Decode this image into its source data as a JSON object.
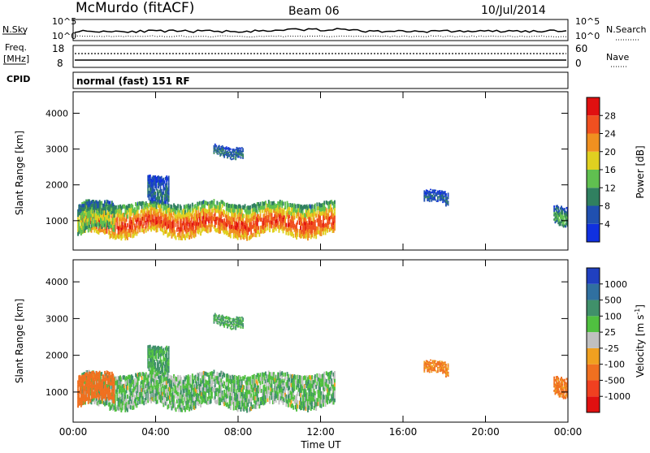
{
  "header": {
    "station": "McMurdo (fitACF)",
    "beam": "Beam 06",
    "date": "10/Jul/2014"
  },
  "noise_panel": {
    "left_label": "N.Sky",
    "right_label": "N.Search",
    "left_ticks": [
      "10^5",
      "10^0"
    ],
    "right_ticks": [
      "10^5",
      "10^0"
    ]
  },
  "freq_panel": {
    "left_label_1": "Freq.",
    "left_label_2": "[MHz]",
    "right_label": "Nave",
    "left_ticks": [
      "18",
      "8"
    ],
    "right_ticks": [
      "60",
      "0"
    ]
  },
  "cpid_panel": {
    "label": "CPID",
    "text": "normal (fast) 151 RF"
  },
  "axes": {
    "xlabel": "Time UT",
    "ylabel": "Slant Range [km]",
    "time_ticks": [
      "00:00",
      "04:00",
      "08:00",
      "12:00",
      "16:00",
      "20:00",
      "00:00"
    ],
    "range_ticks": [
      "1000",
      "2000",
      "3000",
      "4000"
    ]
  },
  "power_bar": {
    "label": "Power [dB]",
    "ticks": [
      "4",
      "8",
      "12",
      "16",
      "20",
      "24",
      "28"
    ],
    "colors": [
      "#1030e0",
      "#2050b0",
      "#308060",
      "#60c050",
      "#e0d020",
      "#f09020",
      "#f05020",
      "#e01010"
    ]
  },
  "velocity_bar": {
    "label": "Velocity [m s",
    "label_sup": "-1",
    "label_end": "]",
    "ticks": [
      "1000",
      "500",
      "100",
      "25",
      "-25",
      "-100",
      "-500",
      "-1000"
    ],
    "colors": [
      "#2040c0",
      "#3070a0",
      "#40906a",
      "#50c040",
      "#c0c0c0",
      "#f0a020",
      "#f07020",
      "#f04020",
      "#e01010"
    ]
  },
  "chart_data": {
    "type": "heatmap",
    "title": "McMurdo (fitACF)  Beam 06  10/Jul/2014",
    "xlabel": "Time UT",
    "ylabel": "Slant Range [km]",
    "x_range_hours": [
      0,
      24
    ],
    "y_range_km": [
      180,
      4600
    ],
    "panels": [
      "Power [dB]",
      "Velocity [m s-1]"
    ],
    "power_scale_db": [
      0,
      32
    ],
    "velocity_scale_ms": [
      -1000,
      1000
    ],
    "echo_regions": [
      {
        "t_start": 0.4,
        "t_end": 12.7,
        "r_low_km": 600,
        "r_high_km": 1500,
        "power_db": 26,
        "velocity_ms": 60
      },
      {
        "t_start": 6.8,
        "t_end": 8.2,
        "r_low_km": 2850,
        "r_high_km": 3100,
        "power_db": 9,
        "velocity_ms": 110
      },
      {
        "t_start": 3.6,
        "t_end": 4.6,
        "r_low_km": 1600,
        "r_high_km": 2300,
        "power_db": 8,
        "velocity_ms": 120
      },
      {
        "t_start": 17.0,
        "t_end": 18.2,
        "r_low_km": 1450,
        "r_high_km": 1800,
        "power_db": 7,
        "velocity_ms": -120
      },
      {
        "t_start": 23.3,
        "t_end": 24.0,
        "r_low_km": 900,
        "r_high_km": 1400,
        "power_db": 13,
        "velocity_ms": -150
      },
      {
        "t_start": 0.2,
        "t_end": 2.0,
        "r_low_km": 700,
        "r_high_km": 1500,
        "power_db": 16,
        "velocity_ms": -300
      }
    ]
  }
}
